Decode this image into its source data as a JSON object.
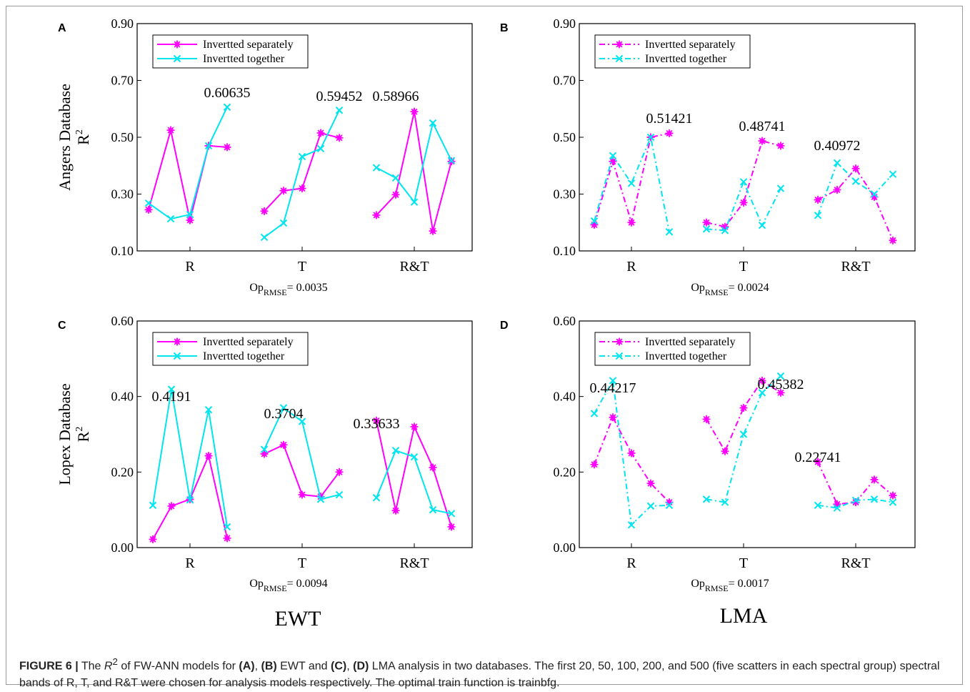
{
  "colors": {
    "separately": "#ff00ff",
    "together": "#00e5ee",
    "axis": "#000000"
  },
  "legend": {
    "separately": "Invertted separately",
    "together": "Invertted together"
  },
  "chart_data": [
    {
      "panel_label": "A",
      "type": "line",
      "line_style": "solid",
      "ylabel_line1": "Angers Database",
      "ylabel_line2": "R",
      "ylabel_sup": "2",
      "ylim": [
        0.1,
        0.9
      ],
      "yticks": [
        "0.10",
        "0.30",
        "0.50",
        "0.70",
        "0.90"
      ],
      "groups": [
        "R",
        "T",
        "R&T"
      ],
      "series": [
        {
          "name": "Invertted separately",
          "values": [
            [
              0.245,
              0.525,
              0.208,
              0.47,
              0.465
            ],
            [
              0.24,
              0.312,
              0.32,
              0.515,
              0.498
            ],
            [
              0.226,
              0.298,
              0.59,
              0.17,
              0.415
            ]
          ]
        },
        {
          "name": "Invertted together",
          "values": [
            [
              0.268,
              0.213,
              0.228,
              0.47,
              0.606
            ],
            [
              0.148,
              0.198,
              0.432,
              0.46,
              0.595
            ],
            [
              0.393,
              0.357,
              0.272,
              0.55,
              0.418
            ]
          ]
        }
      ],
      "annotations": [
        "0.60635",
        "0.59452",
        "0.58966"
      ],
      "op_main": "Op",
      "op_sub": "RMSE",
      "op_value": "= 0.0035"
    },
    {
      "panel_label": "B",
      "type": "line",
      "line_style": "dashed",
      "ylim": [
        0.1,
        0.9
      ],
      "yticks": [
        "0.10",
        "0.30",
        "0.50",
        "0.70",
        "0.90"
      ],
      "groups": [
        "R",
        "T",
        "R&T"
      ],
      "series": [
        {
          "name": "Invertted separately",
          "values": [
            [
              0.192,
              0.415,
              0.2,
              0.5,
              0.514
            ],
            [
              0.2,
              0.185,
              0.27,
              0.487,
              0.47
            ],
            [
              0.28,
              0.315,
              0.39,
              0.29,
              0.137
            ]
          ]
        },
        {
          "name": "Invertted together",
          "values": [
            [
              0.205,
              0.435,
              0.338,
              0.5,
              0.167
            ],
            [
              0.177,
              0.172,
              0.343,
              0.19,
              0.32
            ],
            [
              0.225,
              0.41,
              0.345,
              0.3,
              0.37
            ]
          ]
        }
      ],
      "annotations": [
        "0.51421",
        "0.48741",
        "0.40972"
      ],
      "op_main": "Op",
      "op_sub": "RMSE",
      "op_value": "= 0.0024"
    },
    {
      "panel_label": "C",
      "type": "line",
      "line_style": "solid",
      "ylabel_line1": "Lopex Database",
      "ylabel_line2": "R",
      "ylabel_sup": "2",
      "ylim": [
        0.0,
        0.6
      ],
      "yticks": [
        "0.00",
        "0.20",
        "0.40",
        "0.60"
      ],
      "groups": [
        "R",
        "T",
        "R&T"
      ],
      "series": [
        {
          "name": "Invertted separately",
          "values": [
            [
              0.022,
              0.11,
              0.128,
              0.243,
              0.025
            ],
            [
              0.248,
              0.272,
              0.14,
              0.135,
              0.2
            ],
            [
              0.336,
              0.098,
              0.32,
              0.212,
              0.055
            ]
          ]
        },
        {
          "name": "Invertted together",
          "values": [
            [
              0.112,
              0.419,
              0.126,
              0.365,
              0.055
            ],
            [
              0.26,
              0.37,
              0.334,
              0.128,
              0.14
            ],
            [
              0.132,
              0.257,
              0.24,
              0.1,
              0.09
            ]
          ]
        }
      ],
      "annotations": [
        "0.4191",
        "0.3704",
        "0.33633"
      ],
      "op_main": "Op",
      "op_sub": "RMSE",
      "op_value": "= 0.0094"
    },
    {
      "panel_label": "D",
      "type": "line",
      "line_style": "dashed",
      "ylim": [
        0.0,
        0.6
      ],
      "yticks": [
        "0.00",
        "0.20",
        "0.40",
        "0.60"
      ],
      "groups": [
        "R",
        "T",
        "R&T"
      ],
      "series": [
        {
          "name": "Invertted separately",
          "values": [
            [
              0.22,
              0.345,
              0.25,
              0.17,
              0.12
            ],
            [
              0.34,
              0.255,
              0.37,
              0.442,
              0.41
            ],
            [
              0.227,
              0.115,
              0.12,
              0.18,
              0.138
            ]
          ]
        },
        {
          "name": "Invertted together",
          "values": [
            [
              0.355,
              0.442,
              0.06,
              0.11,
              0.112
            ],
            [
              0.128,
              0.12,
              0.3,
              0.41,
              0.454
            ],
            [
              0.112,
              0.105,
              0.125,
              0.128,
              0.12
            ]
          ]
        }
      ],
      "annotations": [
        "0.44217",
        "0.45382",
        "0.22741"
      ],
      "op_main": "Op",
      "op_sub": "RMSE",
      "op_value": "= 0.0017"
    }
  ],
  "bottom_labels": {
    "left": "EWT",
    "right": "LMA"
  },
  "caption": {
    "lead": "FIGURE 6 |",
    "t1": " The ",
    "r_main": "R",
    "r_sup": "2",
    "t2": " of FW-ANN models for ",
    "a": "(A)",
    "t3": ", ",
    "b": "(B)",
    "t4": " EWT and ",
    "c": "(C)",
    "t5": ", ",
    "d": "(D)",
    "t6": " LMA analysis in two databases. The first 20, 50, 100, 200, and 500 (five scatters in each spectral group) spectral bands of R, T, and R&T were chosen for analysis models respectively. The optimal train function is trainbfg."
  }
}
